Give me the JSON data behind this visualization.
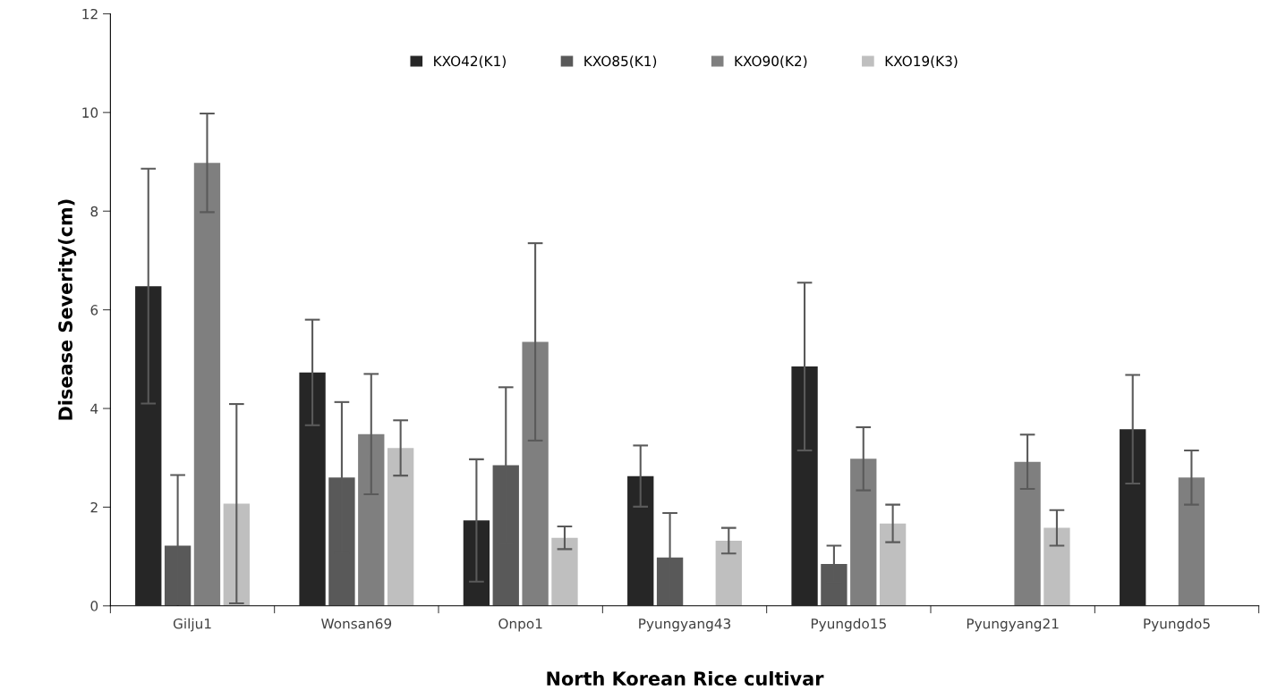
{
  "chart_data": {
    "type": "bar",
    "xlabel": "North Korean Rice cultivar",
    "ylabel": "Disease Severity(cm)",
    "categories": [
      "Gilju1",
      "Wonsan69",
      "Onpo1",
      "Pyungyang43",
      "Pyungdo15",
      "Pyungyang21",
      "Pyungdo5"
    ],
    "series": [
      {
        "name": "KXO42(K1)",
        "color": "#262626",
        "values": [
          6.48,
          4.73,
          1.73,
          2.63,
          4.85,
          null,
          3.58
        ],
        "errors": [
          2.38,
          1.07,
          1.24,
          0.62,
          1.7,
          null,
          1.1
        ]
      },
      {
        "name": "KXO85(K1)",
        "color": "#595959",
        "values": [
          1.22,
          2.6,
          2.85,
          0.98,
          0.85,
          null,
          null
        ],
        "errors": [
          1.43,
          1.53,
          1.58,
          0.9,
          0.37,
          null,
          null
        ]
      },
      {
        "name": "KXO90(K2)",
        "color": "#7f7f7f",
        "values": [
          8.98,
          3.48,
          5.35,
          null,
          2.98,
          2.92,
          2.6
        ],
        "errors": [
          1.0,
          1.22,
          2.0,
          null,
          0.64,
          0.55,
          0.55
        ]
      },
      {
        "name": "KXO19(K3)",
        "color": "#bfbfbf",
        "values": [
          2.07,
          3.2,
          1.38,
          1.32,
          1.67,
          1.58,
          null
        ],
        "errors": [
          2.02,
          0.56,
          0.23,
          0.26,
          0.38,
          0.36,
          null
        ]
      }
    ],
    "ylim": [
      0,
      12
    ],
    "yticks": [
      0,
      2,
      4,
      6,
      8,
      10,
      12
    ],
    "grid": false,
    "legend": "top"
  }
}
